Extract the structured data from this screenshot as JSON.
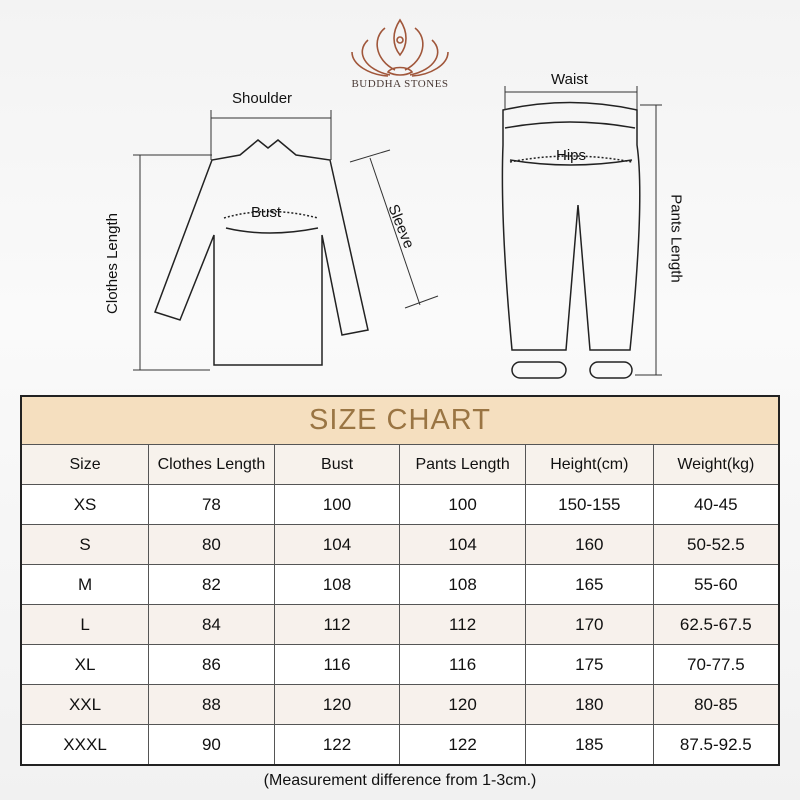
{
  "brand": {
    "name": "BUDDHA STONES",
    "logo_icon": "lotus-meditation-icon",
    "logo_color": "#a0563a"
  },
  "diagram": {
    "top_labels": {
      "shoulder": "Shoulder",
      "bust": "Bust",
      "sleeve": "Sleeve",
      "clothes_length": "Clothes Length"
    },
    "pants_labels": {
      "waist": "Waist",
      "hips": "Hips",
      "pants_length": "Pants Length"
    }
  },
  "table": {
    "title": "SIZE CHART",
    "headers": [
      "Size",
      "Clothes Length",
      "Bust",
      "Pants Length",
      "Height(cm)",
      "Weight(kg)"
    ],
    "rows": [
      [
        "XS",
        "78",
        "100",
        "100",
        "150-155",
        "40-45"
      ],
      [
        "S",
        "80",
        "104",
        "104",
        "160",
        "50-52.5"
      ],
      [
        "M",
        "82",
        "108",
        "108",
        "165",
        "55-60"
      ],
      [
        "L",
        "84",
        "112",
        "112",
        "170",
        "62.5-67.5"
      ],
      [
        "XL",
        "86",
        "116",
        "116",
        "175",
        "70-77.5"
      ],
      [
        "XXL",
        "88",
        "120",
        "120",
        "180",
        "80-85"
      ],
      [
        "XXXL",
        "90",
        "122",
        "122",
        "185",
        "87.5-92.5"
      ]
    ],
    "title_bg": "#f5dfbf",
    "title_color": "#9a7543"
  },
  "note": "(Measurement difference from 1-3cm.)"
}
